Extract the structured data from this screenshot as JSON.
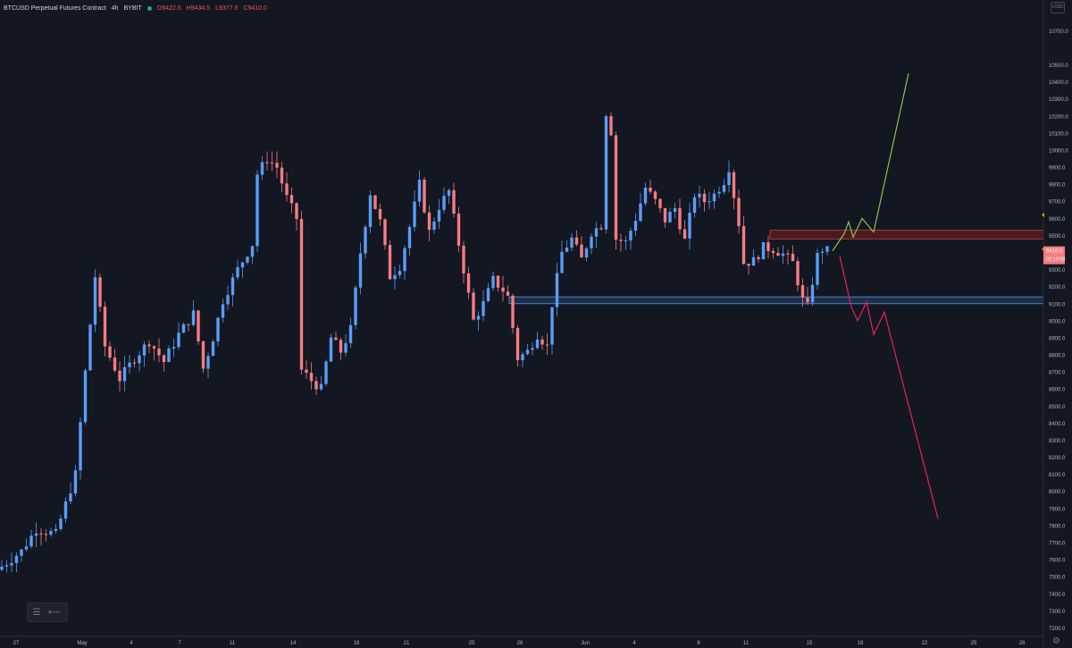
{
  "header": {
    "symbol": "BTCUSD Perpetual Futures Contract",
    "interval": "4h",
    "exchange": "BYBIT",
    "open": "O9422.5",
    "high": "H9434.5",
    "low": "L9377.5",
    "close": "C9410.0"
  },
  "currency_label": "USD",
  "toolbar": {
    "list_icon": "list-icon",
    "collapse_icon": "arrow-left-icon"
  },
  "colors": {
    "background": "#131722",
    "bull": "#5b9cf6",
    "bear": "#f77c80",
    "resistance_zone": "#b71c1c",
    "support_zone": "#5b9cf6",
    "bull_path": "#8bc34a",
    "bear_path": "#e91e63",
    "price_label": "#f77c80",
    "text": "#b2b5be"
  },
  "price_label": {
    "value": "9410.0",
    "countdown": "02:10:58"
  },
  "chart_data": {
    "type": "candlestick",
    "y_range": [
      7150,
      10880
    ],
    "y_ticks": [
      7200,
      7300,
      7400,
      7500,
      7600,
      7700,
      7800,
      7900,
      8000,
      8100,
      8200,
      8300,
      8400,
      8500,
      8600,
      8700,
      8800,
      8900,
      9000,
      9100,
      9200,
      9300,
      9400,
      9500,
      9600,
      9700,
      9800,
      9900,
      10000,
      10100,
      10200,
      10300,
      10400,
      10500,
      10700
    ],
    "x_labels": [
      "27",
      "May",
      "4",
      "7",
      "11",
      "14",
      "18",
      "21",
      "25",
      "28",
      "Jun",
      "4",
      "8",
      "11",
      "15",
      "18",
      "22",
      "25",
      "28"
    ],
    "close_path": [
      [
        0,
        7560
      ],
      [
        4,
        7650
      ],
      [
        7,
        7780
      ],
      [
        11,
        7750
      ],
      [
        15,
        8100
      ],
      [
        17,
        8700
      ],
      [
        19,
        9260
      ],
      [
        21,
        8850
      ],
      [
        24,
        8660
      ],
      [
        27,
        8780
      ],
      [
        30,
        8880
      ],
      [
        33,
        8760
      ],
      [
        36,
        8920
      ],
      [
        39,
        9040
      ],
      [
        41,
        8720
      ],
      [
        43,
        8900
      ],
      [
        45,
        9120
      ],
      [
        48,
        9300
      ],
      [
        51,
        9450
      ],
      [
        52,
        9860
      ],
      [
        54,
        9950
      ],
      [
        56,
        9900
      ],
      [
        58,
        9720
      ],
      [
        60,
        9600
      ],
      [
        61,
        8710
      ],
      [
        63,
        8650
      ],
      [
        65,
        8600
      ],
      [
        67,
        8900
      ],
      [
        69,
        8820
      ],
      [
        71,
        8950
      ],
      [
        73,
        9400
      ],
      [
        75,
        9750
      ],
      [
        77,
        9580
      ],
      [
        79,
        9260
      ],
      [
        81,
        9320
      ],
      [
        83,
        9550
      ],
      [
        85,
        9800
      ],
      [
        87,
        9520
      ],
      [
        89,
        9670
      ],
      [
        91,
        9760
      ],
      [
        92,
        9600
      ],
      [
        94,
        9300
      ],
      [
        96,
        9000
      ],
      [
        98,
        9100
      ],
      [
        100,
        9240
      ],
      [
        102,
        9180
      ],
      [
        103,
        9140
      ],
      [
        105,
        8780
      ],
      [
        107,
        8820
      ],
      [
        109,
        8920
      ],
      [
        111,
        8850
      ],
      [
        112,
        9100
      ],
      [
        114,
        9400
      ],
      [
        116,
        9480
      ],
      [
        118,
        9360
      ],
      [
        120,
        9520
      ],
      [
        122,
        9560
      ],
      [
        123,
        10220
      ],
      [
        124,
        10110
      ],
      [
        125,
        9480
      ],
      [
        127,
        9460
      ],
      [
        129,
        9600
      ],
      [
        131,
        9780
      ],
      [
        133,
        9700
      ],
      [
        135,
        9590
      ],
      [
        137,
        9660
      ],
      [
        139,
        9470
      ],
      [
        141,
        9740
      ],
      [
        143,
        9700
      ],
      [
        145,
        9740
      ],
      [
        147,
        9820
      ],
      [
        148,
        9900
      ],
      [
        150,
        9570
      ],
      [
        151,
        9340
      ],
      [
        153,
        9350
      ],
      [
        155,
        9430
      ],
      [
        157,
        9420
      ],
      [
        159,
        9390
      ],
      [
        161,
        9340
      ],
      [
        163,
        9120
      ],
      [
        164,
        9080
      ],
      [
        166,
        9380
      ],
      [
        167,
        9420
      ],
      [
        168,
        9410
      ]
    ],
    "resistance_zone": [
      9480,
      9530
    ],
    "support_zone": [
      9100,
      9140
    ],
    "bull_projection": [
      [
        9410
      ],
      [
        9510
      ],
      [
        9580
      ],
      [
        9490
      ],
      [
        9600
      ],
      [
        9520
      ],
      [
        10450
      ]
    ],
    "bear_projection": [
      [
        9380
      ],
      [
        9080
      ],
      [
        9000
      ],
      [
        9110
      ],
      [
        8920
      ],
      [
        9050
      ],
      [
        7840
      ]
    ]
  }
}
